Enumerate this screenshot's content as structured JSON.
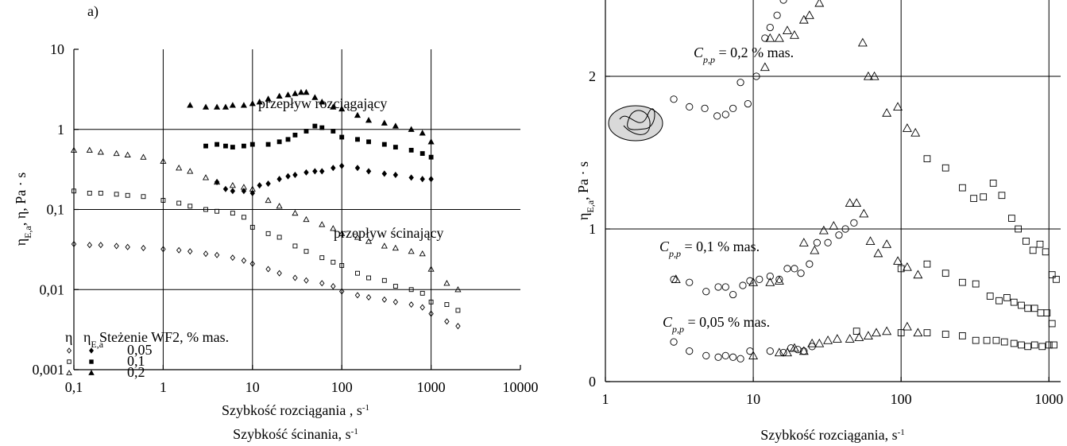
{
  "chart_data": [
    {
      "type": "scatter",
      "title": "a)",
      "x_scale": "log",
      "y_scale": "log",
      "color": "#000000",
      "grid": true,
      "xlim": [
        0.1,
        10000
      ],
      "ylim": [
        0.001,
        10
      ],
      "xticks": [
        {
          "value": 0.1,
          "label": "0,1"
        },
        1,
        10,
        100,
        1000,
        10000
      ],
      "yticks": [
        {
          "value": 0.001,
          "label": "0,001"
        },
        {
          "value": 0.01,
          "label": "0,01"
        },
        {
          "value": 0.1,
          "label": "0,1"
        },
        1,
        10
      ],
      "x_label": [
        {
          "text": "Szybkość rozciągania , s",
          "superscript": "-1"
        },
        {
          "text": "Szybkość ścinania, s",
          "superscript": "-1"
        }
      ],
      "y_label": {
        "symbol": "η",
        "subscript": "E,a",
        "text": ", η, Pa · s"
      },
      "annotations": [
        {
          "text": "przepływ rozciągający"
        },
        {
          "text": "przepływ ścinający"
        }
      ],
      "legend": {
        "header_shear": {
          "symbol": "η"
        },
        "header_extensional": {
          "symbol": "η",
          "subscript": "E,a"
        },
        "title": "Steżenie WF2, % mas.",
        "rows": [
          "0,05",
          "0,1",
          "0,2"
        ]
      },
      "series": [
        {
          "marker": "diamond",
          "filled": false,
          "x": [
            0.1,
            0.15,
            0.2,
            0.3,
            0.4,
            0.6,
            1,
            1.5,
            2,
            3,
            4,
            6,
            8,
            10,
            15,
            20,
            30,
            40,
            60,
            80,
            100,
            150,
            200,
            300,
            400,
            600,
            800,
            1000,
            1500,
            2000
          ],
          "values": [
            0.037,
            0.036,
            0.036,
            0.035,
            0.034,
            0.033,
            0.032,
            0.031,
            0.03,
            0.028,
            0.027,
            0.025,
            0.023,
            0.021,
            0.018,
            0.016,
            0.014,
            0.013,
            0.012,
            0.011,
            0.0095,
            0.0085,
            0.008,
            0.0075,
            0.007,
            0.0065,
            0.006,
            0.005,
            0.004,
            0.0035
          ]
        },
        {
          "marker": "square",
          "filled": false,
          "x": [
            0.1,
            0.15,
            0.2,
            0.3,
            0.4,
            0.6,
            1,
            1.5,
            2,
            3,
            4,
            6,
            8,
            10,
            15,
            20,
            30,
            40,
            60,
            80,
            100,
            150,
            200,
            300,
            400,
            600,
            800,
            1000,
            1500,
            2000
          ],
          "values": [
            0.17,
            0.16,
            0.16,
            0.155,
            0.15,
            0.145,
            0.13,
            0.12,
            0.11,
            0.1,
            0.095,
            0.09,
            0.08,
            0.06,
            0.05,
            0.045,
            0.035,
            0.03,
            0.025,
            0.022,
            0.02,
            0.016,
            0.014,
            0.013,
            0.011,
            0.01,
            0.009,
            0.007,
            0.0065,
            0.0055
          ]
        },
        {
          "marker": "triangle",
          "filled": false,
          "x": [
            0.1,
            0.15,
            0.2,
            0.3,
            0.4,
            0.6,
            1,
            1.5,
            2,
            3,
            4,
            6,
            8,
            10,
            15,
            20,
            30,
            40,
            60,
            80,
            100,
            150,
            200,
            300,
            400,
            600,
            800,
            1000,
            1500,
            2000
          ],
          "values": [
            0.55,
            0.55,
            0.52,
            0.5,
            0.48,
            0.45,
            0.4,
            0.33,
            0.3,
            0.25,
            0.22,
            0.2,
            0.19,
            0.18,
            0.13,
            0.11,
            0.09,
            0.075,
            0.065,
            0.058,
            0.05,
            0.045,
            0.04,
            0.035,
            0.033,
            0.03,
            0.028,
            0.018,
            0.012,
            0.01
          ]
        },
        {
          "marker": "diamond",
          "filled": true,
          "x": [
            4,
            5,
            6,
            8,
            10,
            12,
            15,
            20,
            25,
            30,
            40,
            50,
            60,
            80,
            100,
            150,
            200,
            300,
            400,
            600,
            800,
            1000
          ],
          "values": [
            0.22,
            0.18,
            0.17,
            0.17,
            0.16,
            0.2,
            0.21,
            0.24,
            0.26,
            0.27,
            0.29,
            0.3,
            0.3,
            0.33,
            0.35,
            0.33,
            0.3,
            0.28,
            0.27,
            0.25,
            0.24,
            0.24
          ]
        },
        {
          "marker": "square",
          "filled": true,
          "x": [
            3,
            4,
            5,
            6,
            8,
            10,
            15,
            20,
            25,
            30,
            40,
            50,
            60,
            80,
            100,
            150,
            200,
            300,
            400,
            600,
            800,
            1000
          ],
          "values": [
            0.62,
            0.65,
            0.62,
            0.6,
            0.62,
            0.65,
            0.65,
            0.7,
            0.75,
            0.85,
            0.95,
            1.1,
            1.05,
            0.95,
            0.8,
            0.75,
            0.7,
            0.65,
            0.6,
            0.55,
            0.5,
            0.45
          ]
        },
        {
          "marker": "triangle",
          "filled": true,
          "x": [
            2,
            3,
            4,
            5,
            6,
            8,
            10,
            12,
            15,
            20,
            25,
            30,
            35,
            40,
            50,
            60,
            80,
            100,
            150,
            200,
            300,
            400,
            600,
            800,
            1000
          ],
          "values": [
            2.0,
            1.9,
            1.9,
            1.9,
            2.0,
            2.0,
            2.1,
            2.2,
            2.4,
            2.6,
            2.7,
            2.8,
            2.9,
            2.9,
            2.5,
            2.2,
            1.9,
            1.8,
            1.5,
            1.3,
            1.2,
            1.1,
            1.0,
            0.9,
            0.7
          ]
        }
      ]
    },
    {
      "type": "scatter",
      "x_scale": "log",
      "y_scale": "linear",
      "color": "#000000",
      "grid": true,
      "xlim": [
        1,
        1200
      ],
      "ylim": [
        0,
        2.5
      ],
      "xticks": [
        1,
        10,
        100,
        1000
      ],
      "yticks": [
        0,
        1,
        2
      ],
      "x_label": [
        {
          "text": "Szybkość rozciągania, s",
          "superscript": "-1"
        }
      ],
      "y_label": {
        "symbol": "η",
        "subscript": "E,a",
        "text": ", Pa · s"
      },
      "annotations": [
        {
          "symbol": "C",
          "subscript": "p,p",
          "text": " = 0,2 % mas."
        },
        {
          "symbol": "C",
          "subscript": "p,p",
          "text": " = 0,1 % mas."
        },
        {
          "symbol": "C",
          "subscript": "p,p",
          "text": " = 0,05 % mas."
        }
      ],
      "series": [
        {
          "marker": "circle",
          "filled": false,
          "x": [
            2.9,
            3.7,
            4.7,
            5.7,
            6.5,
            7.3,
            8.2,
            9.2,
            10.5,
            12,
            13,
            14.5,
            16
          ],
          "values": [
            1.85,
            1.8,
            1.79,
            1.74,
            1.75,
            1.79,
            1.96,
            1.82,
            2.0,
            2.25,
            2.32,
            2.4,
            2.5
          ]
        },
        {
          "marker": "triangle",
          "filled": false,
          "x": [
            12,
            13,
            15,
            17,
            19,
            22,
            24,
            28,
            55,
            60,
            66,
            80,
            95,
            110,
            125
          ],
          "values": [
            2.06,
            2.25,
            2.25,
            2.3,
            2.27,
            2.37,
            2.4,
            2.48,
            2.22,
            2.0,
            2.0,
            1.76,
            1.8,
            1.66,
            1.63
          ]
        },
        {
          "marker": "square",
          "filled": false,
          "x": [
            150,
            200,
            260,
            310,
            360,
            420,
            480,
            560,
            620,
            700,
            780,
            870,
            950,
            1050,
            1120
          ],
          "values": [
            1.46,
            1.4,
            1.27,
            1.2,
            1.21,
            1.3,
            1.22,
            1.07,
            1.0,
            0.92,
            0.86,
            0.9,
            0.85,
            0.7,
            0.67
          ]
        },
        {
          "marker": "circle",
          "filled": false,
          "x": [
            2.9,
            3.7,
            4.8,
            5.8,
            6.5,
            7.3,
            8.5,
            9.5,
            11,
            13,
            15,
            17,
            19,
            21,
            24,
            27,
            32,
            38,
            42,
            48
          ],
          "values": [
            0.67,
            0.65,
            0.59,
            0.62,
            0.62,
            0.57,
            0.63,
            0.66,
            0.67,
            0.69,
            0.67,
            0.74,
            0.74,
            0.71,
            0.77,
            0.91,
            0.91,
            0.96,
            1.0,
            1.04
          ]
        },
        {
          "marker": "triangle",
          "filled": false,
          "x": [
            3,
            10,
            13,
            15,
            22,
            26,
            30,
            35,
            45,
            50,
            56,
            62,
            70,
            80,
            95,
            110,
            130
          ],
          "values": [
            0.67,
            0.65,
            0.65,
            0.66,
            0.91,
            0.86,
            0.99,
            1.02,
            1.17,
            1.17,
            1.1,
            0.92,
            0.84,
            0.9,
            0.79,
            0.75,
            0.7
          ]
        },
        {
          "marker": "square",
          "filled": false,
          "x": [
            100,
            150,
            200,
            260,
            320,
            400,
            460,
            520,
            580,
            650,
            720,
            800,
            880,
            970,
            1050
          ],
          "values": [
            0.74,
            0.77,
            0.71,
            0.65,
            0.64,
            0.56,
            0.53,
            0.55,
            0.52,
            0.5,
            0.48,
            0.48,
            0.45,
            0.45,
            0.38
          ]
        },
        {
          "marker": "circle",
          "filled": false,
          "x": [
            2.9,
            3.7,
            4.8,
            5.8,
            6.5,
            7.3,
            8.2,
            9.5,
            13,
            16,
            18,
            20,
            22,
            25
          ],
          "values": [
            0.26,
            0.2,
            0.17,
            0.16,
            0.17,
            0.16,
            0.15,
            0.2,
            0.2,
            0.19,
            0.22,
            0.21,
            0.2,
            0.23
          ]
        },
        {
          "marker": "triangle",
          "filled": false,
          "x": [
            10,
            15,
            17,
            19,
            22,
            25,
            28,
            32,
            37,
            45,
            52,
            60,
            68,
            80,
            110,
            130
          ],
          "values": [
            0.17,
            0.19,
            0.19,
            0.22,
            0.2,
            0.25,
            0.25,
            0.27,
            0.28,
            0.28,
            0.29,
            0.3,
            0.32,
            0.33,
            0.36,
            0.32
          ]
        },
        {
          "marker": "square",
          "filled": false,
          "x": [
            50,
            100,
            150,
            200,
            260,
            320,
            380,
            440,
            500,
            580,
            650,
            720,
            800,
            900,
            1000,
            1080
          ],
          "values": [
            0.33,
            0.32,
            0.32,
            0.31,
            0.3,
            0.27,
            0.27,
            0.27,
            0.26,
            0.25,
            0.24,
            0.23,
            0.24,
            0.23,
            0.24,
            0.24
          ]
        }
      ]
    }
  ]
}
